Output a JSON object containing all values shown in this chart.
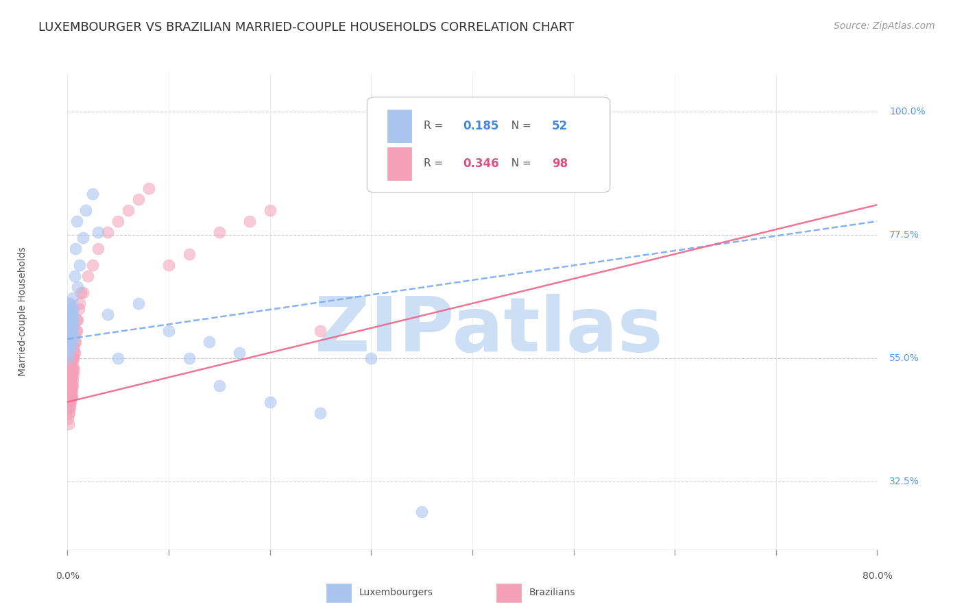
{
  "title": "LUXEMBOURGER VS BRAZILIAN MARRIED-COUPLE HOUSEHOLDS CORRELATION CHART",
  "source": "Source: ZipAtlas.com",
  "ylabel_label": "Married-couple Households",
  "legend_entries": [
    {
      "label": "Luxembourgers",
      "color": "#aac4f0",
      "R": "0.185",
      "N": "52",
      "R_color": "#4488dd",
      "N_color": "#4488dd"
    },
    {
      "label": "Brazilians",
      "color": "#f4a0b8",
      "R": "0.346",
      "N": "98",
      "R_color": "#e05080",
      "N_color": "#e05080"
    }
  ],
  "watermark": "ZIPatlas",
  "watermark_color": "#ccdff5",
  "background_color": "#ffffff",
  "grid_color": "#cccccc",
  "lux_scatter_x": [
    0.05,
    0.05,
    0.05,
    0.08,
    0.1,
    0.1,
    0.12,
    0.15,
    0.15,
    0.18,
    0.2,
    0.2,
    0.22,
    0.25,
    0.25,
    0.28,
    0.3,
    0.3,
    0.32,
    0.35,
    0.35,
    0.38,
    0.4,
    0.4,
    0.45,
    0.5,
    0.5,
    0.55,
    0.6,
    0.6,
    0.65,
    0.7,
    0.8,
    0.9,
    1.0,
    1.2,
    1.5,
    1.8,
    2.5,
    3.0,
    4.0,
    5.0,
    7.0,
    10.0,
    12.0,
    14.0,
    15.0,
    17.0,
    20.0,
    25.0,
    30.0,
    35.0
  ],
  "lux_scatter_y": [
    55.0,
    58.0,
    60.0,
    56.0,
    62.0,
    65.0,
    58.0,
    60.0,
    63.0,
    57.0,
    61.0,
    64.0,
    59.0,
    62.0,
    65.0,
    58.0,
    60.0,
    57.0,
    63.0,
    61.0,
    59.0,
    64.0,
    62.0,
    58.0,
    60.0,
    63.0,
    66.0,
    61.0,
    64.0,
    62.0,
    59.0,
    70.0,
    75.0,
    80.0,
    68.0,
    72.0,
    77.0,
    82.0,
    85.0,
    78.0,
    63.0,
    55.0,
    65.0,
    60.0,
    55.0,
    58.0,
    50.0,
    56.0,
    47.0,
    45.0,
    55.0,
    27.0
  ],
  "bra_scatter_x": [
    0.05,
    0.05,
    0.05,
    0.05,
    0.05,
    0.07,
    0.08,
    0.08,
    0.1,
    0.1,
    0.1,
    0.12,
    0.12,
    0.13,
    0.15,
    0.15,
    0.15,
    0.15,
    0.18,
    0.18,
    0.2,
    0.2,
    0.2,
    0.22,
    0.22,
    0.22,
    0.25,
    0.25,
    0.25,
    0.28,
    0.28,
    0.3,
    0.3,
    0.3,
    0.32,
    0.33,
    0.35,
    0.35,
    0.38,
    0.38,
    0.4,
    0.4,
    0.42,
    0.45,
    0.45,
    0.5,
    0.5,
    0.55,
    0.6,
    0.65,
    0.7,
    0.8,
    0.9,
    1.0,
    1.2,
    1.5,
    2.0,
    2.5,
    3.0,
    4.0,
    5.0,
    6.0,
    7.0,
    8.0,
    10.0,
    12.0,
    15.0,
    18.0,
    20.0,
    25.0,
    0.06,
    0.07,
    0.09,
    0.11,
    0.14,
    0.16,
    0.19,
    0.21,
    0.23,
    0.26,
    0.29,
    0.31,
    0.34,
    0.36,
    0.39,
    0.41,
    0.43,
    0.46,
    0.48,
    0.52,
    0.58,
    0.62,
    0.68,
    0.75,
    0.85,
    0.95,
    1.1,
    1.3
  ],
  "bra_scatter_y": [
    47.0,
    49.0,
    51.0,
    53.0,
    44.0,
    50.0,
    48.0,
    52.0,
    47.0,
    50.0,
    53.0,
    49.0,
    52.0,
    46.0,
    50.0,
    48.0,
    52.0,
    45.0,
    49.0,
    53.0,
    48.0,
    51.0,
    54.0,
    47.0,
    50.0,
    53.0,
    49.0,
    52.0,
    46.0,
    50.0,
    53.0,
    48.0,
    51.0,
    54.0,
    49.0,
    52.0,
    48.0,
    51.0,
    50.0,
    53.0,
    49.0,
    52.0,
    55.0,
    50.0,
    48.0,
    51.0,
    54.0,
    52.0,
    55.0,
    53.0,
    56.0,
    58.0,
    60.0,
    62.0,
    65.0,
    67.0,
    70.0,
    72.0,
    75.0,
    78.0,
    80.0,
    82.0,
    84.0,
    86.0,
    72.0,
    74.0,
    78.0,
    80.0,
    82.0,
    60.0,
    46.0,
    48.0,
    43.0,
    47.0,
    45.0,
    49.0,
    46.0,
    50.0,
    48.0,
    51.0,
    47.0,
    50.0,
    49.0,
    52.0,
    48.0,
    51.0,
    49.0,
    52.0,
    50.0,
    53.0,
    55.0,
    57.0,
    56.0,
    58.0,
    60.0,
    62.0,
    64.0,
    67.0
  ],
  "lux_line_x": [
    0.0,
    80.0
  ],
  "lux_line_y": [
    58.5,
    80.0
  ],
  "bra_line_x": [
    0.0,
    80.0
  ],
  "bra_line_y": [
    47.0,
    83.0
  ],
  "lux_line_color": "#7aaaee",
  "bra_line_color": "#ee6688",
  "xlim": [
    0.0,
    80.0
  ],
  "ylim": [
    20.0,
    107.0
  ],
  "xpct_ticks": [
    0.0,
    10.0,
    20.0,
    30.0,
    40.0,
    50.0,
    60.0,
    70.0,
    80.0
  ],
  "ypct_ticks": [
    32.5,
    55.0,
    77.5,
    100.0
  ],
  "axis_bottom_y": 20.0,
  "title_fontsize": 13,
  "source_fontsize": 10
}
